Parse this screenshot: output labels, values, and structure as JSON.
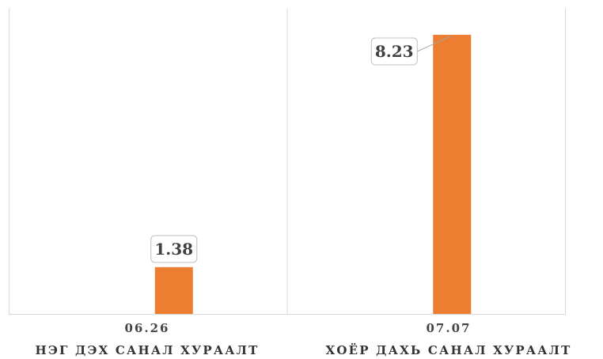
{
  "chart_data": {
    "type": "bar",
    "categories": [
      {
        "date": "06.26",
        "name": "НЭГ ДЭХ САНАЛ ХУРААЛТ"
      },
      {
        "date": "07.07",
        "name": "ХОЁР ДАХЬ САНАЛ ХУРААЛТ"
      }
    ],
    "values": [
      1.38,
      8.23
    ],
    "data_labels": [
      "1.38",
      "8.23"
    ],
    "ylim": [
      0,
      9
    ],
    "grid": "vertical category separators",
    "legend": "none",
    "colors": {
      "bar": "#ED7D31",
      "axis": "#D9D9D9",
      "label_border": "#BFBFBF",
      "leader": "#A6A6A6"
    }
  }
}
